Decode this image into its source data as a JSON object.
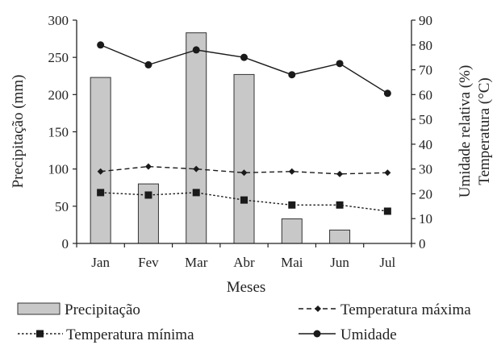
{
  "chart_data": {
    "type": "bar",
    "categories": [
      "Jan",
      "Fev",
      "Mar",
      "Abr",
      "Mai",
      "Jun",
      "Jul"
    ],
    "xlabel": "Meses",
    "ylabel_left": "Precipitação (mm)",
    "ylabel_right": [
      "Umidade relativa (%)",
      "Temperatura (°C)"
    ],
    "ylim_left": [
      0,
      300
    ],
    "ylim_right": [
      0,
      90
    ],
    "yticks_left": [
      0,
      50,
      100,
      150,
      200,
      250,
      300
    ],
    "yticks_right": [
      0,
      10,
      20,
      30,
      40,
      50,
      60,
      70,
      80,
      90
    ],
    "grid": false,
    "legend_position": "bottom",
    "series": [
      {
        "name": "Precipitação",
        "kind": "bar",
        "axis": "left",
        "color": "#c8c8c8",
        "values": [
          223,
          80,
          283,
          227,
          33,
          18,
          0
        ]
      },
      {
        "name": "Temperatura máxima",
        "kind": "line",
        "axis": "right",
        "line_style": "dashed",
        "marker": "diamond",
        "color": "#1a1a1a",
        "values": [
          29,
          31,
          30,
          28.5,
          29,
          28,
          28.5
        ]
      },
      {
        "name": "Temperatura mínima",
        "kind": "line",
        "axis": "right",
        "line_style": "dotted",
        "marker": "square",
        "color": "#1a1a1a",
        "values": [
          20.5,
          19.5,
          20.5,
          17.5,
          15.5,
          15.5,
          13
        ]
      },
      {
        "name": "Umidade",
        "kind": "line",
        "axis": "right",
        "line_style": "solid",
        "marker": "circle",
        "color": "#1a1a1a",
        "values": [
          80,
          72,
          78,
          75,
          68,
          72.5,
          60.5
        ]
      }
    ]
  }
}
